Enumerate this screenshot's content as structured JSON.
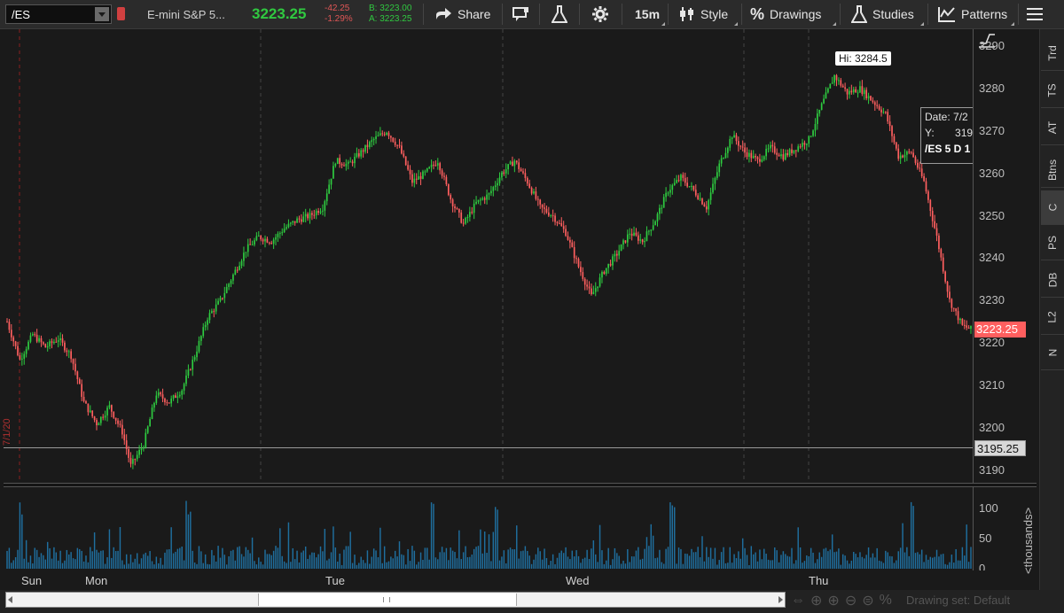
{
  "toolbar": {
    "symbol": "/ES",
    "description": "E-mini S&P 5...",
    "last": "3223.25",
    "net_change": "-42.25",
    "pct_change": "-1.29%",
    "bid": "B: 3223.00",
    "ask": "A: 3223.25",
    "share_label": "Share",
    "timeframe": "15m",
    "style_label": "Style",
    "drawings_label": "Drawings",
    "studies_label": "Studies",
    "patterns_label": "Patterns"
  },
  "colors": {
    "up": "#2ecc40",
    "down": "#ff5f5f",
    "background": "#1a1a1a",
    "volume": "#1f6f9f",
    "last_flag": "#ff5f5f"
  },
  "price_axis": {
    "ticks": [
      "3290",
      "3280",
      "3270",
      "3260",
      "3250",
      "3240",
      "3230",
      "3220",
      "3210",
      "3200",
      "3190"
    ],
    "last_flag": "3223.25",
    "line_flag": "3195.25"
  },
  "volume_axis": {
    "ticks": [
      "100",
      "50",
      "0"
    ],
    "unit_label": "<thousands>"
  },
  "time_axis": {
    "labels": [
      "Sun",
      "Mon",
      "Tue",
      "Wed",
      "Thu"
    ]
  },
  "annotations": {
    "high_label": "Hi: 3284.5",
    "date_marker": "7/1/20",
    "info_date": "Date: 7/2",
    "info_y": "Y:",
    "info_y_value": "319",
    "info_study": "/ES 5 D 1"
  },
  "sidebar": {
    "tabs": [
      "Trd",
      "TS",
      "AT",
      "Btns",
      "C",
      "PS",
      "DB",
      "L2",
      "N"
    ],
    "active": "C"
  },
  "bottom": {
    "drawing_set": "Drawing set: Default"
  },
  "chart_data": {
    "type": "candlestick",
    "symbol": "/ES",
    "interval": "15m",
    "ylim": [
      3187,
      3294
    ],
    "high": 3284.5,
    "last": 3223.25,
    "horizontal_line": 3195.25,
    "days": [
      "Sun",
      "Mon",
      "Tue",
      "Wed",
      "Thu"
    ],
    "close_path": [
      [
        0,
        3225
      ],
      [
        6,
        3216
      ],
      [
        12,
        3222
      ],
      [
        18,
        3219
      ],
      [
        24,
        3221
      ],
      [
        30,
        3217
      ],
      [
        36,
        3206
      ],
      [
        42,
        3201
      ],
      [
        48,
        3205
      ],
      [
        54,
        3199
      ],
      [
        58,
        3191
      ],
      [
        64,
        3196
      ],
      [
        70,
        3208
      ],
      [
        76,
        3206
      ],
      [
        82,
        3209
      ],
      [
        88,
        3217
      ],
      [
        94,
        3226
      ],
      [
        100,
        3230
      ],
      [
        106,
        3236
      ],
      [
        112,
        3242
      ],
      [
        118,
        3245
      ],
      [
        124,
        3244
      ],
      [
        130,
        3247
      ],
      [
        136,
        3249
      ],
      [
        142,
        3250
      ],
      [
        148,
        3252
      ],
      [
        154,
        3263
      ],
      [
        160,
        3262
      ],
      [
        166,
        3265
      ],
      [
        172,
        3268
      ],
      [
        178,
        3270
      ],
      [
        184,
        3266
      ],
      [
        190,
        3258
      ],
      [
        196,
        3260
      ],
      [
        202,
        3263
      ],
      [
        208,
        3254
      ],
      [
        214,
        3248
      ],
      [
        220,
        3253
      ],
      [
        226,
        3255
      ],
      [
        232,
        3260
      ],
      [
        238,
        3263
      ],
      [
        244,
        3258
      ],
      [
        250,
        3252
      ],
      [
        256,
        3250
      ],
      [
        262,
        3246
      ],
      [
        268,
        3238
      ],
      [
        274,
        3231
      ],
      [
        280,
        3237
      ],
      [
        286,
        3241
      ],
      [
        292,
        3246
      ],
      [
        298,
        3244
      ],
      [
        304,
        3249
      ],
      [
        310,
        3256
      ],
      [
        316,
        3259
      ],
      [
        322,
        3256
      ],
      [
        328,
        3252
      ],
      [
        334,
        3262
      ],
      [
        340,
        3269
      ],
      [
        346,
        3265
      ],
      [
        352,
        3263
      ],
      [
        358,
        3266
      ],
      [
        364,
        3264
      ],
      [
        370,
        3266
      ],
      [
        376,
        3268
      ],
      [
        382,
        3276
      ],
      [
        388,
        3283
      ],
      [
        394,
        3279
      ],
      [
        400,
        3280
      ],
      [
        406,
        3277
      ],
      [
        412,
        3274
      ],
      [
        418,
        3264
      ],
      [
        424,
        3265
      ],
      [
        430,
        3258
      ],
      [
        436,
        3245
      ],
      [
        442,
        3230
      ],
      [
        448,
        3224
      ],
      [
        452,
        3223.25
      ]
    ]
  }
}
